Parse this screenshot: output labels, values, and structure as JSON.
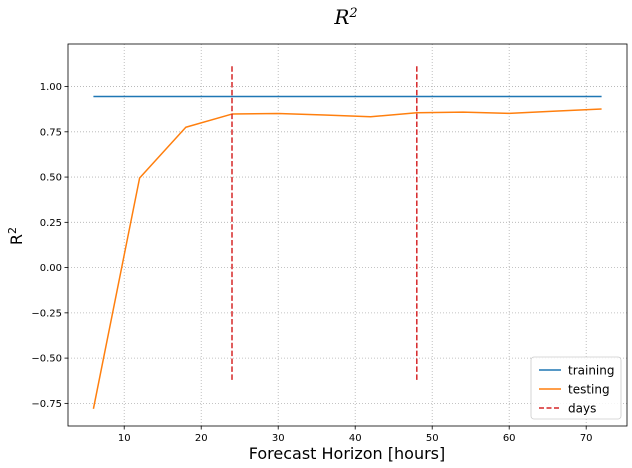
{
  "chart_data": {
    "type": "line",
    "title": "R",
    "title_superscript": "2",
    "xlabel": "Forecast Horizon [hours]",
    "ylabel": "R",
    "ylabel_superscript": "2",
    "xlim": [
      2.7,
      75.3
    ],
    "ylim": [
      -0.875,
      1.235
    ],
    "x_ticks": [
      10,
      20,
      30,
      40,
      50,
      60,
      70
    ],
    "y_ticks": [
      -0.75,
      -0.5,
      -0.25,
      0.0,
      0.25,
      0.5,
      0.75,
      1.0
    ],
    "x_tick_labels": [
      "10",
      "20",
      "30",
      "40",
      "50",
      "60",
      "70"
    ],
    "y_tick_labels": [
      "−0.75",
      "−0.50",
      "−0.25",
      "0.00",
      "0.25",
      "0.50",
      "0.75",
      "1.00"
    ],
    "grid": true,
    "legend_position": "bottom-right",
    "series": [
      {
        "name": "training",
        "color": "#1f77b4",
        "style": "solid",
        "x": [
          6,
          12,
          18,
          24,
          30,
          36,
          42,
          48,
          54,
          60,
          66,
          72
        ],
        "y": [
          0.945,
          0.945,
          0.945,
          0.945,
          0.945,
          0.945,
          0.945,
          0.945,
          0.945,
          0.945,
          0.945,
          0.945
        ]
      },
      {
        "name": "testing",
        "color": "#ff7f0e",
        "style": "solid",
        "x": [
          6,
          12,
          18,
          24,
          30,
          36,
          42,
          48,
          54,
          60,
          66,
          72
        ],
        "y": [
          -0.78,
          0.495,
          0.775,
          0.848,
          0.851,
          0.843,
          0.833,
          0.855,
          0.859,
          0.852,
          0.864,
          0.876
        ]
      },
      {
        "name": "days",
        "color": "#d62728",
        "style": "dashed",
        "segments": [
          {
            "x": 24,
            "y_from": -0.62,
            "y_to": 1.12
          },
          {
            "x": 48,
            "y_from": -0.62,
            "y_to": 1.12
          }
        ]
      }
    ]
  }
}
